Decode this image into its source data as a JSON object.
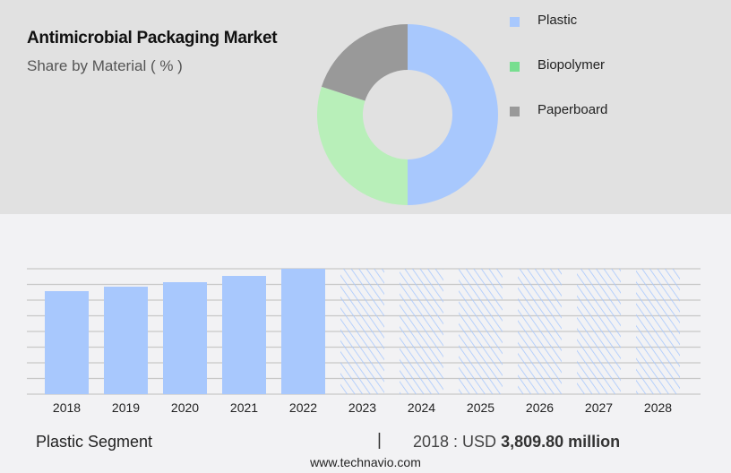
{
  "chart_data": [
    {
      "type": "pie",
      "title": "Antimicrobial Packaging Market",
      "subtitle": "Share by Material ( % )",
      "donut": true,
      "legend_position": "right",
      "slices": [
        {
          "name": "Plastic",
          "value": 50,
          "color": "#a8c8fd"
        },
        {
          "name": "Biopolymer",
          "value": 30,
          "color": "#b8efb9",
          "legend_color": "#77de8f"
        },
        {
          "name": "Paperboard",
          "value": 20,
          "color": "#999999"
        }
      ]
    },
    {
      "type": "bar",
      "categories": [
        "2018",
        "2019",
        "2020",
        "2021",
        "2022",
        "2023",
        "2024",
        "2025",
        "2026",
        "2027",
        "2028"
      ],
      "values": [
        3809.8,
        3975,
        4141,
        4373,
        4638,
        null,
        null,
        null,
        null,
        null,
        null
      ],
      "forecast_categories": [
        "2023",
        "2024",
        "2025",
        "2026",
        "2027",
        "2028"
      ],
      "bar_color": "#a8c8fd",
      "forecast_style": "hatched",
      "grid": true,
      "ylim": [
        0,
        4638
      ]
    }
  ],
  "footer": {
    "segment": "Plastic Segment",
    "separator": "|",
    "value_prefix": "2018 : USD",
    "value": "3,809.80 million",
    "url": "www.technavio.com"
  }
}
